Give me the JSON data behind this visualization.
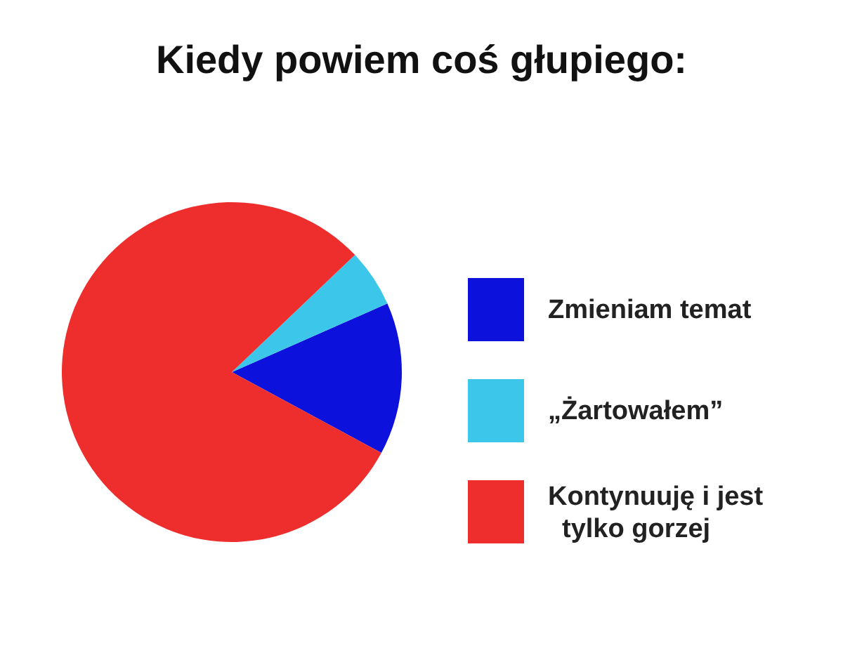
{
  "chart_data": {
    "type": "pie",
    "title": "Kiedy powiem coś głupiego:",
    "categories": [
      "Zmieniam temat",
      "„Żartowałem”",
      "Kontynuuję i jest tylko gorzej"
    ],
    "values": [
      14.5,
      5.5,
      80
    ],
    "colors": [
      "#0c12dc",
      "#3cc6ea",
      "#ee2d2d"
    ],
    "legend": "right"
  }
}
